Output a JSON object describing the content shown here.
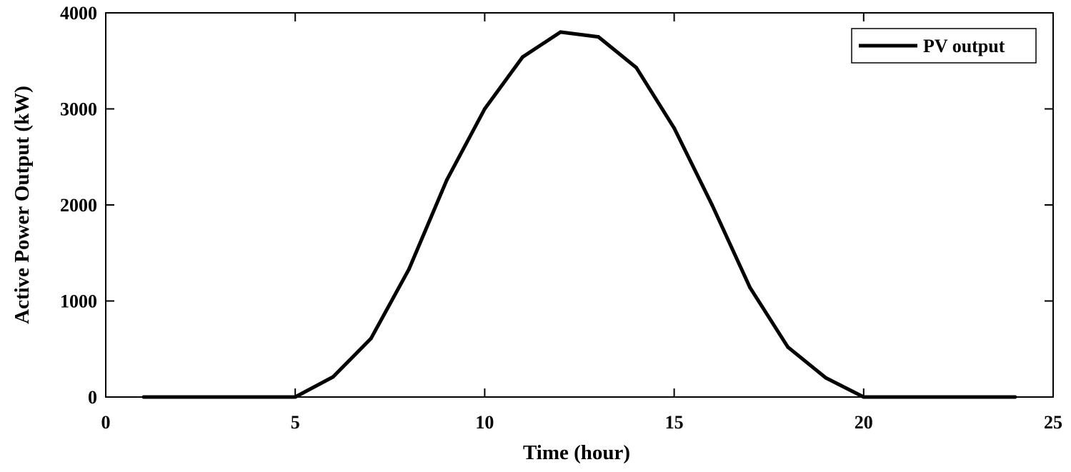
{
  "chart_data": {
    "type": "line",
    "title": "",
    "xlabel": "Time (hour)",
    "ylabel": "Active Power Output (kW)",
    "xlim": [
      0,
      25
    ],
    "ylim": [
      0,
      4000
    ],
    "xticks": [
      0,
      5,
      10,
      15,
      20,
      25
    ],
    "yticks": [
      0,
      1000,
      2000,
      3000,
      4000
    ],
    "xtick_labels": [
      "0",
      "5",
      "10",
      "15",
      "20",
      "25"
    ],
    "ytick_labels": [
      "0",
      "1000",
      "2000",
      "3000",
      "4000"
    ],
    "grid": false,
    "legend": {
      "position": "top-right",
      "entries": [
        "PV output"
      ]
    },
    "series": [
      {
        "name": "PV output",
        "color": "#000000",
        "x": [
          1,
          2,
          3,
          4,
          5,
          6,
          7,
          8,
          9,
          10,
          11,
          12,
          13,
          14,
          15,
          16,
          17,
          18,
          19,
          20,
          21,
          22,
          23,
          24
        ],
        "y": [
          0,
          0,
          0,
          0,
          0,
          210,
          610,
          1330,
          2260,
          3000,
          3540,
          3800,
          3750,
          3430,
          2800,
          2000,
          1140,
          520,
          200,
          0,
          0,
          0,
          0,
          0
        ]
      }
    ]
  }
}
